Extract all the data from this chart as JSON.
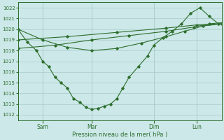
{
  "xlabel": "Pression niveau de la mer( hPa )",
  "bg_color": "#cce8e8",
  "grid_color": "#aacccc",
  "line_color": "#2d6e2d",
  "ylim_min": 1011.5,
  "ylim_max": 1022.5,
  "yticks": [
    1012,
    1013,
    1014,
    1015,
    1016,
    1017,
    1018,
    1019,
    1020,
    1021,
    1022
  ],
  "xtick_labels": [
    "Sam",
    "Mar",
    "Dim",
    "Lun"
  ],
  "xtick_positions": [
    16,
    48,
    88,
    116
  ],
  "xlim_min": 0,
  "xlim_max": 132,
  "line1_x": [
    0,
    16,
    32,
    48,
    64,
    80,
    96,
    108,
    120,
    132
  ],
  "line1_y": [
    1020,
    1019,
    1018.3,
    1018.0,
    1018.2,
    1018.7,
    1019.3,
    1019.8,
    1020.3,
    1020.5
  ],
  "line2_x": [
    0,
    6,
    12,
    16,
    20,
    24,
    28,
    32,
    36,
    40,
    44,
    48,
    52,
    56,
    60,
    64,
    68,
    72,
    78,
    84,
    88,
    94,
    100,
    106,
    112,
    118,
    124,
    130
  ],
  "line2_y": [
    1020,
    1018.8,
    1018,
    1017,
    1016.5,
    1015.5,
    1015.0,
    1014.5,
    1013.5,
    1013.2,
    1012.7,
    1012.5,
    1012.6,
    1012.8,
    1013.0,
    1013.5,
    1014.5,
    1015.5,
    1016.5,
    1017.5,
    1018.5,
    1019.2,
    1019.8,
    1020.5,
    1021.5,
    1022.0,
    1021.2,
    1020.5
  ],
  "line3_x": [
    0,
    24,
    48,
    72,
    96,
    114,
    124,
    132
  ],
  "line3_y": [
    1018.2,
    1018.5,
    1019.0,
    1019.4,
    1019.8,
    1020.2,
    1020.5,
    1020.6
  ],
  "line4_x": [
    0,
    32,
    64,
    96,
    116,
    132
  ],
  "line4_y": [
    1019.0,
    1019.3,
    1019.7,
    1020.1,
    1020.4,
    1020.5
  ]
}
